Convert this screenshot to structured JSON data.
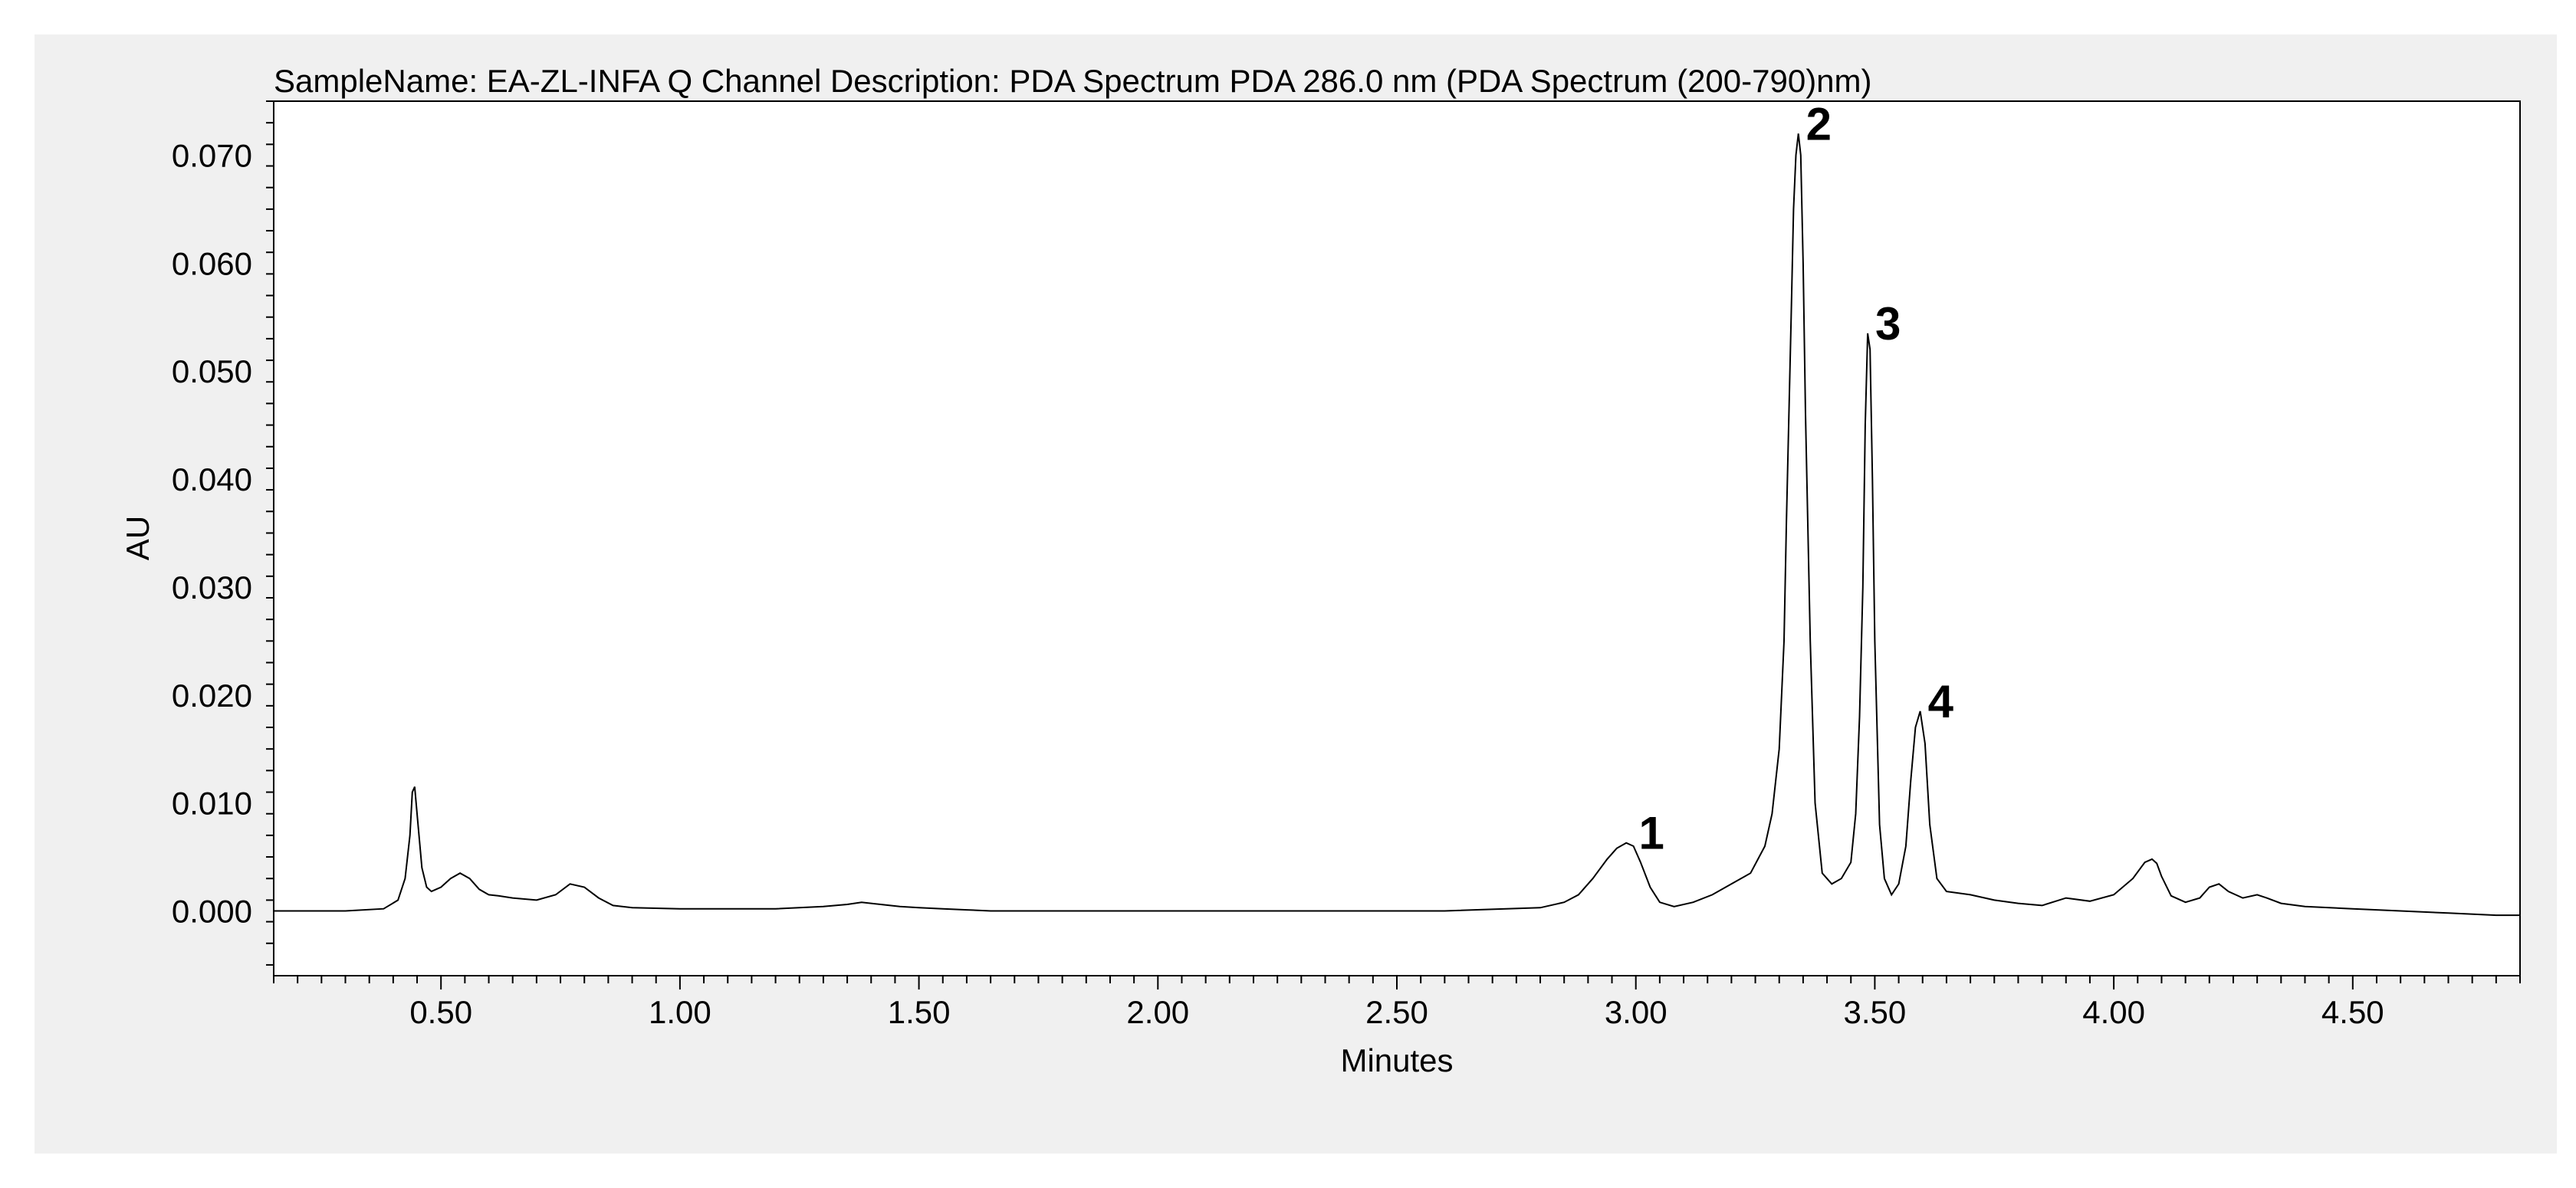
{
  "chart_data": {
    "type": "line",
    "title": "SampleName: EA-ZL-INFA Q Channel Description: PDA Spectrum PDA 286.0 nm (PDA Spectrum (200-790)nm)",
    "xlabel": "Minutes",
    "ylabel": "AU",
    "xlim": [
      0.15,
      4.85
    ],
    "ylim": [
      -0.006,
      0.075
    ],
    "x_ticks": [
      "0.50",
      "1.00",
      "1.50",
      "2.00",
      "2.50",
      "3.00",
      "3.50",
      "4.00",
      "4.50"
    ],
    "x_tick_values": [
      0.5,
      1.0,
      1.5,
      2.0,
      2.5,
      3.0,
      3.5,
      4.0,
      4.5
    ],
    "y_ticks": [
      "0.000",
      "0.010",
      "0.020",
      "0.030",
      "0.040",
      "0.050",
      "0.060",
      "0.070"
    ],
    "y_tick_values": [
      0.0,
      0.01,
      0.02,
      0.03,
      0.04,
      0.05,
      0.06,
      0.07
    ],
    "grid": false,
    "colors": {
      "trace": "#000000",
      "frame": "#f0f0f0",
      "plot_bg": "#ffffff"
    },
    "peaks": [
      {
        "label": "1",
        "x": 2.99,
        "y": 0.0063
      },
      {
        "label": "2",
        "x": 3.34,
        "y": 0.072
      },
      {
        "label": "3",
        "x": 3.485,
        "y": 0.0535
      },
      {
        "label": "4",
        "x": 3.595,
        "y": 0.0185
      }
    ],
    "series": [
      {
        "x": [
          0.15,
          0.3,
          0.38,
          0.41,
          0.425,
          0.435,
          0.44,
          0.445,
          0.45,
          0.46,
          0.47,
          0.48,
          0.5,
          0.52,
          0.54,
          0.56,
          0.58,
          0.6,
          0.62,
          0.65,
          0.7,
          0.74,
          0.77,
          0.8,
          0.83,
          0.86,
          0.9,
          1.0,
          1.1,
          1.2,
          1.3,
          1.35,
          1.38,
          1.42,
          1.46,
          1.5,
          1.55,
          1.6,
          1.65,
          1.7,
          1.8,
          2.0,
          2.2,
          2.4,
          2.6,
          2.8,
          2.85,
          2.88,
          2.91,
          2.94,
          2.96,
          2.98,
          2.995,
          3.01,
          3.03,
          3.05,
          3.08,
          3.12,
          3.16,
          3.2,
          3.24,
          3.27,
          3.285,
          3.3,
          3.31,
          3.315,
          3.325,
          3.33,
          3.335,
          3.34,
          3.345,
          3.35,
          3.355,
          3.365,
          3.375,
          3.39,
          3.41,
          3.43,
          3.45,
          3.46,
          3.468,
          3.475,
          3.48,
          3.485,
          3.49,
          3.495,
          3.5,
          3.51,
          3.52,
          3.535,
          3.55,
          3.565,
          3.575,
          3.585,
          3.595,
          3.605,
          3.615,
          3.63,
          3.65,
          3.7,
          3.75,
          3.8,
          3.85,
          3.9,
          3.95,
          4.0,
          4.04,
          4.065,
          4.08,
          4.09,
          4.1,
          4.12,
          4.15,
          4.18,
          4.2,
          4.22,
          4.24,
          4.27,
          4.3,
          4.32,
          4.35,
          4.4,
          4.5,
          4.6,
          4.7,
          4.8,
          4.85
        ],
        "values": [
          0.0,
          0.0,
          0.0002,
          0.001,
          0.003,
          0.007,
          0.011,
          0.0115,
          0.009,
          0.004,
          0.0022,
          0.0018,
          0.0022,
          0.003,
          0.0035,
          0.003,
          0.002,
          0.0015,
          0.0014,
          0.0012,
          0.001,
          0.0015,
          0.0025,
          0.0022,
          0.0012,
          0.0005,
          0.0003,
          0.0002,
          0.0002,
          0.0002,
          0.0004,
          0.0006,
          0.0008,
          0.0006,
          0.0004,
          0.0003,
          0.0002,
          0.0001,
          0.0,
          0.0,
          0.0,
          0.0,
          0.0,
          0.0,
          0.0,
          0.0003,
          0.0008,
          0.0015,
          0.003,
          0.0048,
          0.0058,
          0.0063,
          0.006,
          0.0045,
          0.0022,
          0.0008,
          0.0004,
          0.0008,
          0.0015,
          0.0025,
          0.0035,
          0.006,
          0.009,
          0.015,
          0.025,
          0.036,
          0.055,
          0.065,
          0.07,
          0.072,
          0.07,
          0.06,
          0.046,
          0.025,
          0.01,
          0.0035,
          0.0025,
          0.003,
          0.0045,
          0.009,
          0.018,
          0.03,
          0.045,
          0.0535,
          0.052,
          0.04,
          0.025,
          0.008,
          0.003,
          0.0015,
          0.0025,
          0.006,
          0.012,
          0.017,
          0.0185,
          0.0155,
          0.008,
          0.003,
          0.0018,
          0.0015,
          0.001,
          0.0007,
          0.0005,
          0.0012,
          0.0009,
          0.0015,
          0.003,
          0.0045,
          0.0048,
          0.0044,
          0.0032,
          0.0014,
          0.0008,
          0.0012,
          0.0022,
          0.0025,
          0.0018,
          0.0012,
          0.0015,
          0.0012,
          0.0007,
          0.0004,
          0.0002,
          0.0,
          -0.0002,
          -0.0004,
          -0.0004
        ]
      }
    ]
  }
}
